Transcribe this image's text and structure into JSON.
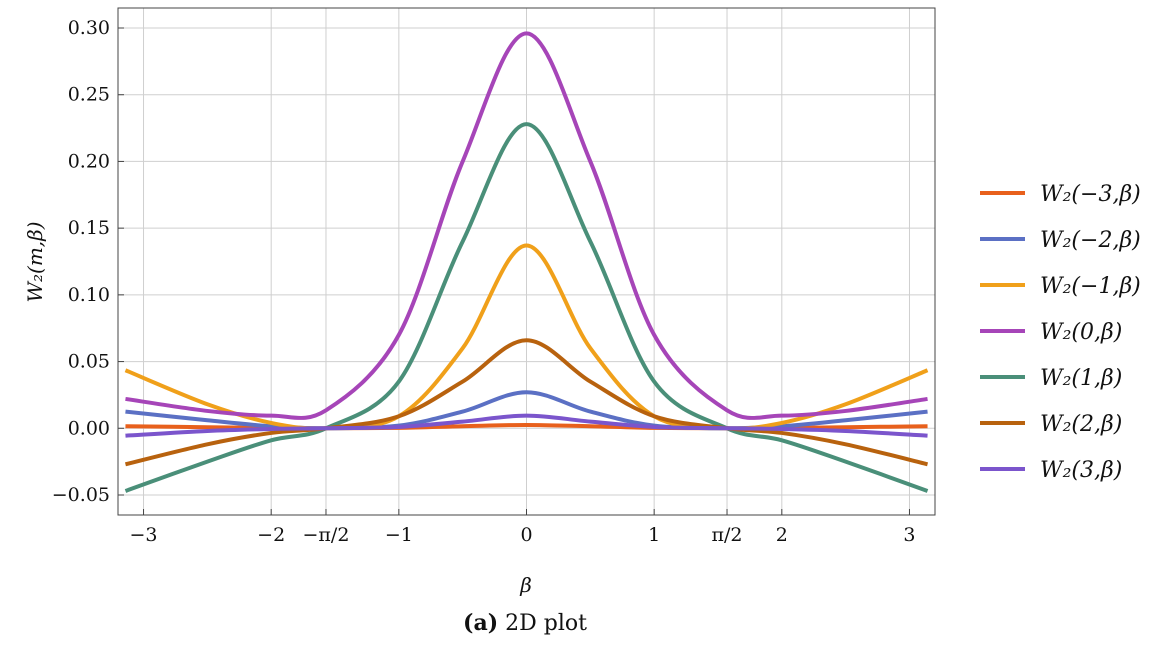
{
  "chart_data": {
    "type": "line",
    "xlabel": "β",
    "ylabel": "W₂(m,β)",
    "xlim": [
      -3.2,
      3.2
    ],
    "ylim": [
      -0.065,
      0.315
    ],
    "x_ticks": [
      {
        "value": -3,
        "label": "−3"
      },
      {
        "value": -2,
        "label": "−2"
      },
      {
        "value": -1.5708,
        "label": "−π/2"
      },
      {
        "value": -1,
        "label": "−1"
      },
      {
        "value": 0,
        "label": "0"
      },
      {
        "value": 1,
        "label": "1"
      },
      {
        "value": 1.5708,
        "label": "π/2"
      },
      {
        "value": 2,
        "label": "2"
      },
      {
        "value": 3,
        "label": "3"
      }
    ],
    "y_ticks": [
      {
        "value": -0.05,
        "label": "−0.05"
      },
      {
        "value": 0.0,
        "label": "0.00"
      },
      {
        "value": 0.05,
        "label": "0.05"
      },
      {
        "value": 0.1,
        "label": "0.10"
      },
      {
        "value": 0.15,
        "label": "0.15"
      },
      {
        "value": 0.2,
        "label": "0.20"
      },
      {
        "value": 0.25,
        "label": "0.25"
      },
      {
        "value": 0.3,
        "label": "0.30"
      }
    ],
    "grid": true,
    "legend_position": "right",
    "x": [
      -3.1416,
      -2.5,
      -2.0,
      -1.5708,
      -1.0,
      -0.5,
      0,
      0.5,
      1.0,
      1.5708,
      2.0,
      2.5,
      3.1416
    ],
    "series": [
      {
        "name": "W₂(−3,β)",
        "color": "#e8601c",
        "values": [
          0.0015,
          0.0008,
          0.0002,
          0.0,
          0.0003,
          0.0015,
          0.0025,
          0.0015,
          0.0003,
          0.0,
          0.0002,
          0.0008,
          0.0015
        ]
      },
      {
        "name": "W₂(−2,β)",
        "color": "#5b70c4",
        "values": [
          0.0125,
          0.006,
          0.0015,
          0.0,
          0.002,
          0.0125,
          0.027,
          0.0125,
          0.002,
          0.0,
          0.0015,
          0.006,
          0.0125
        ]
      },
      {
        "name": "W₂(−1,β)",
        "color": "#f0a01a",
        "values": [
          0.0435,
          0.018,
          0.004,
          0.0,
          0.009,
          0.06,
          0.137,
          0.06,
          0.009,
          0.0,
          0.004,
          0.018,
          0.0435
        ]
      },
      {
        "name": "W₂(0,β)",
        "color": "#a645b8",
        "values": [
          0.022,
          0.013,
          0.0095,
          0.0135,
          0.07,
          0.2,
          0.296,
          0.2,
          0.07,
          0.0135,
          0.0095,
          0.013,
          0.022
        ]
      },
      {
        "name": "W₂(1,β)",
        "color": "#4a8f79",
        "values": [
          -0.047,
          -0.025,
          -0.009,
          0.0,
          0.035,
          0.14,
          0.228,
          0.14,
          0.035,
          0.0,
          -0.009,
          -0.025,
          -0.047
        ]
      },
      {
        "name": "W₂(2,β)",
        "color": "#b8620e",
        "values": [
          -0.027,
          -0.012,
          -0.0035,
          0.0,
          0.009,
          0.035,
          0.066,
          0.035,
          0.009,
          0.0,
          -0.0035,
          -0.012,
          -0.027
        ]
      },
      {
        "name": "W₂(3,β)",
        "color": "#7b55cc",
        "values": [
          -0.0055,
          -0.002,
          -0.0005,
          0.0,
          0.001,
          0.005,
          0.0095,
          0.005,
          0.001,
          0.0,
          -0.0005,
          -0.002,
          -0.0055
        ]
      }
    ]
  },
  "caption": {
    "label": "(a)",
    "text": "2D plot"
  }
}
